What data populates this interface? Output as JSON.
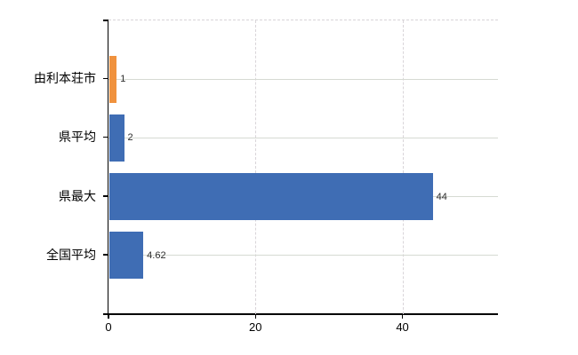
{
  "chart": {
    "title": "",
    "background_color": "#ffffff"
  },
  "chart_data": {
    "type": "bar",
    "orientation": "horizontal",
    "categories": [
      "由利本荘市",
      "県平均",
      "県最大",
      "全国平均"
    ],
    "values": [
      1,
      2,
      44,
      4.62
    ],
    "value_labels": [
      "1",
      "2",
      "44",
      "4.62"
    ],
    "bar_colors": [
      "#f0923e",
      "#3f6db4",
      "#3f6db4",
      "#3f6db4"
    ],
    "title": "",
    "xlabel": "",
    "ylabel": "",
    "xlim": [
      0,
      53
    ],
    "x_ticks": [
      0,
      20,
      40
    ],
    "x_tick_labels": [
      "0",
      "20",
      "40"
    ],
    "legend": null,
    "grid": {
      "vertical": "dashed",
      "horizontal": "solid",
      "top_border": "dashed"
    }
  },
  "colors": {
    "bar_orange": "#f0923e",
    "bar_blue": "#3f6db4",
    "axis": "#000000",
    "gridline_horizontal": "#d6dad3",
    "gridline_vertical": "#d9d5d9",
    "tick_label_text": "#000000",
    "value_label_text": "#2d2d2d"
  }
}
